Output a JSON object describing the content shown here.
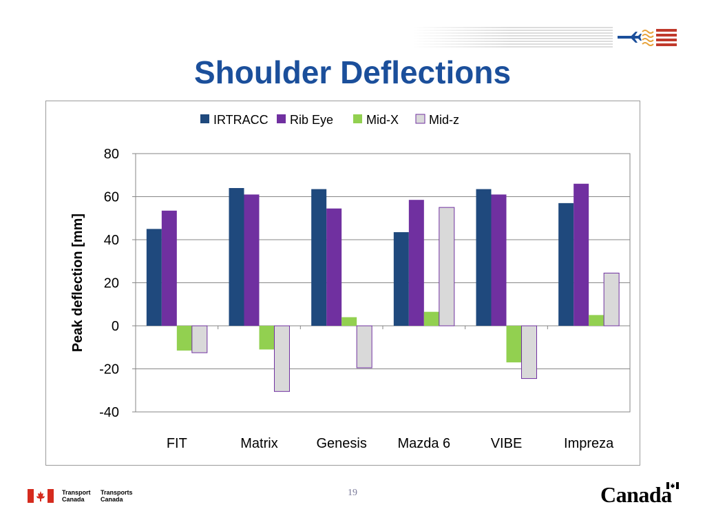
{
  "slide": {
    "title": "Shoulder Deflections",
    "page_number": "19",
    "footer": {
      "dept_en_line1": "Transport",
      "dept_en_line2": "Canada",
      "dept_fr_line1": "Transports",
      "dept_fr_line2": "Canada",
      "wordmark": "Canada"
    }
  },
  "chart_data": {
    "type": "bar",
    "categories": [
      "FIT",
      "Matrix",
      "Genesis",
      "Mazda 6",
      "VIBE",
      "Impreza"
    ],
    "series": [
      {
        "name": "IRTRACC",
        "color": "#1f497d",
        "values": [
          45,
          64,
          63.5,
          43.5,
          63.5,
          57
        ]
      },
      {
        "name": "Rib Eye",
        "color": "#7030a0",
        "values": [
          53.5,
          61,
          54.5,
          58.5,
          61,
          66
        ]
      },
      {
        "name": "Mid-X",
        "color": "#92d050",
        "values": [
          -11.5,
          -11,
          4,
          6.5,
          -17,
          5
        ]
      },
      {
        "name": "Mid-z",
        "color": "#d9d9d9",
        "values": [
          -12.5,
          -30.5,
          -19.5,
          55,
          -24.5,
          24.5
        ]
      }
    ],
    "xlabel": "",
    "ylabel": "Peak deflection [mm]",
    "ylim": [
      -40,
      80
    ],
    "yticks": [
      80,
      60,
      40,
      20,
      0,
      -20,
      -40
    ],
    "grid": true,
    "legend_position": "top"
  }
}
